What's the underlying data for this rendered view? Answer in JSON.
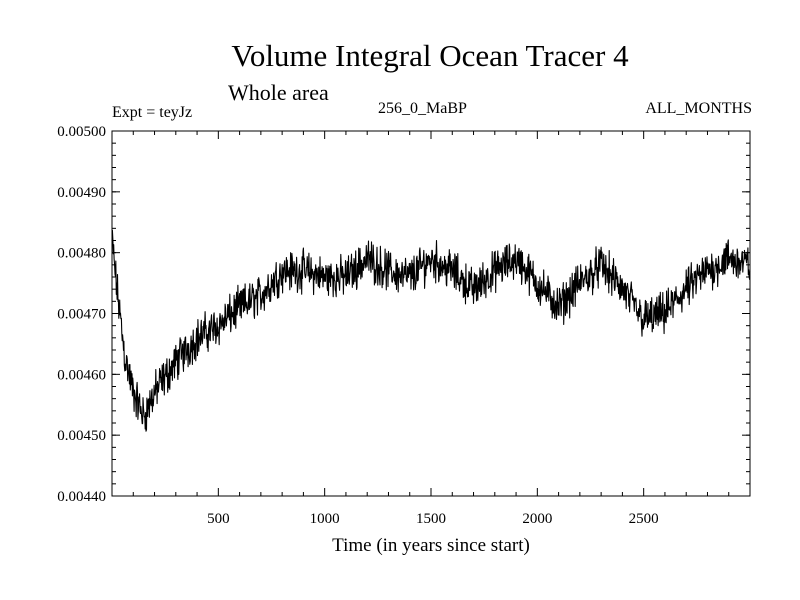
{
  "chart_data": {
    "type": "line",
    "title": "Volume Integral Ocean Tracer 4",
    "subtitle": "Whole area",
    "annotations": {
      "experiment": "Expt = teyJz",
      "run": "256_0_MaBP",
      "period": "ALL_MONTHS"
    },
    "xlabel": "Time (in years since start)",
    "ylabel": "",
    "xlim": [
      0,
      3000
    ],
    "ylim": [
      0.0044,
      0.005
    ],
    "x_ticks": [
      500,
      1000,
      1500,
      2000,
      2500
    ],
    "y_ticks": [
      "0.00440",
      "0.00450",
      "0.00460",
      "0.00470",
      "0.00480",
      "0.00490",
      "0.00500"
    ],
    "grid": false,
    "series": [
      {
        "name": "Ocean Tracer 4",
        "color": "#000000",
        "noise_amplitude": 4.5e-05,
        "x": [
          0,
          20,
          60,
          100,
          150,
          200,
          300,
          400,
          500,
          600,
          700,
          800,
          900,
          1000,
          1100,
          1200,
          1300,
          1400,
          1500,
          1600,
          1700,
          1800,
          1900,
          2000,
          2100,
          2200,
          2300,
          2400,
          2500,
          2600,
          2700,
          2800,
          2900,
          3000
        ],
        "values": [
          0.00482,
          0.00475,
          0.00463,
          0.00457,
          0.00453,
          0.00457,
          0.00462,
          0.00466,
          0.00468,
          0.00471,
          0.00473,
          0.00477,
          0.00477,
          0.00476,
          0.00476,
          0.00479,
          0.00477,
          0.00476,
          0.00479,
          0.00477,
          0.00474,
          0.00477,
          0.00479,
          0.00475,
          0.00471,
          0.00475,
          0.00478,
          0.00474,
          0.00469,
          0.0047,
          0.00474,
          0.00477,
          0.00479,
          0.00478
        ]
      }
    ]
  }
}
